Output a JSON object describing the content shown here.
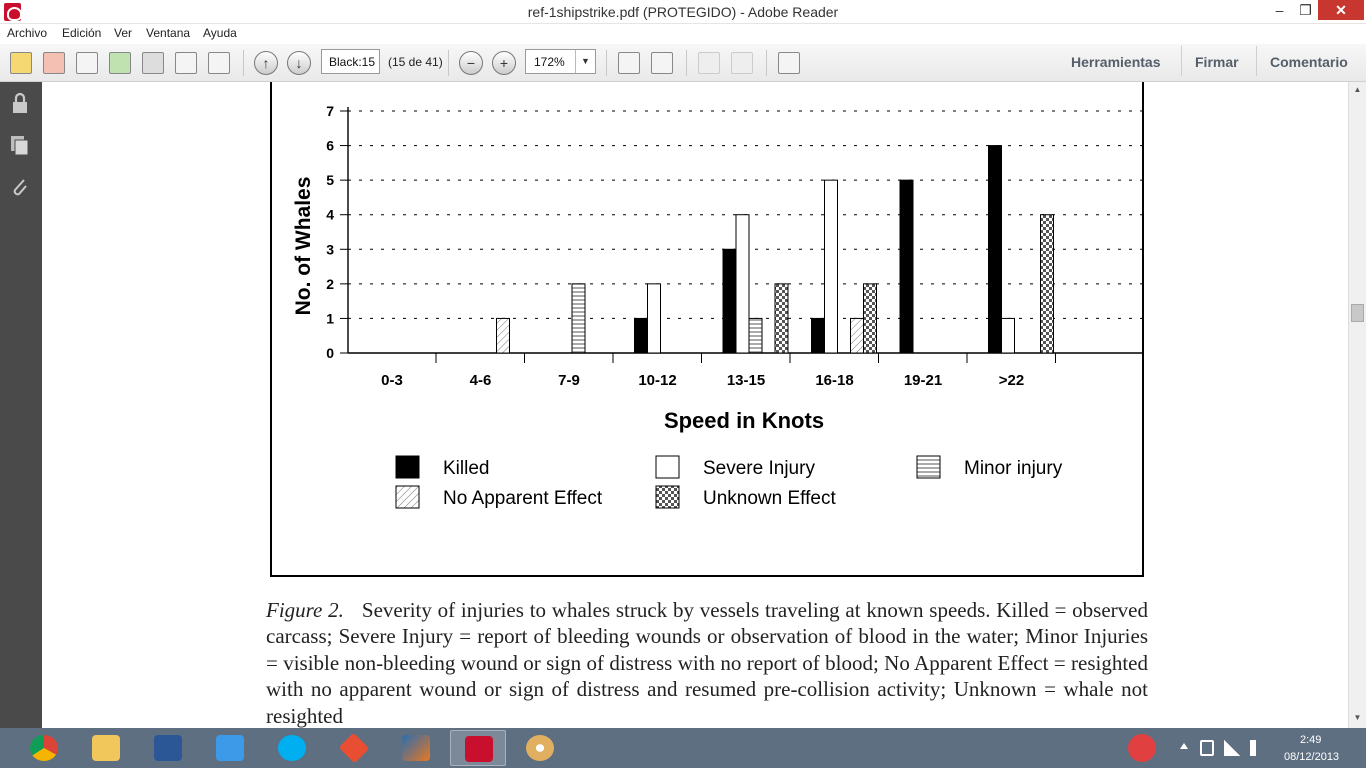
{
  "window": {
    "title": "ref-1shipstrike.pdf (PROTEGIDO) - Adobe Reader",
    "minimize_glyph": "–",
    "maximize_glyph": "❐",
    "close_glyph": "✕"
  },
  "menu": {
    "items": [
      "Archivo",
      "Edición",
      "Ver",
      "Ventana",
      "Ayuda"
    ]
  },
  "toolbar": {
    "page_value": "Black:15",
    "page_count": "(15 de 41)",
    "zoom_value": "172%",
    "zoom_dropdown_glyph": "▼",
    "zoom_out_glyph": "−",
    "zoom_in_glyph": "+",
    "prev_glyph": "↑",
    "next_glyph": "↓",
    "links": {
      "tools": "Herramientas",
      "sign": "Firmar",
      "comment": "Comentario"
    }
  },
  "scrollbar": {
    "up_glyph": "▲",
    "down_glyph": "▼"
  },
  "chart_data": {
    "type": "bar",
    "xlabel": "Speed in Knots",
    "ylabel": "No. of Whales",
    "ylim": [
      0,
      7
    ],
    "yticks": [
      "0",
      "1",
      "2",
      "3",
      "4",
      "5",
      "6",
      "7"
    ],
    "grid": true,
    "categories": [
      "0-3",
      "4-6",
      "7-9",
      "10-12",
      "13-15",
      "16-18",
      "19-21",
      ">22"
    ],
    "series": [
      {
        "name": "Killed",
        "pattern": "solid",
        "values": [
          0,
          0,
          0,
          1,
          3,
          1,
          5,
          6
        ]
      },
      {
        "name": "Severe Injury",
        "pattern": "white",
        "values": [
          0,
          0,
          0,
          2,
          4,
          5,
          0,
          1
        ]
      },
      {
        "name": "Minor injury",
        "pattern": "horizontal",
        "values": [
          0,
          0,
          2,
          0,
          1,
          0,
          0,
          0
        ]
      },
      {
        "name": "No Apparent Effect",
        "pattern": "diagonal",
        "values": [
          0,
          1,
          0,
          0,
          0,
          1,
          0,
          0
        ]
      },
      {
        "name": "Unknown Effect",
        "pattern": "checker",
        "values": [
          0,
          0,
          0,
          0,
          2,
          2,
          0,
          4
        ]
      }
    ]
  },
  "caption": {
    "label": "Figure 2.",
    "text": "Severity of injuries to whales struck by vessels traveling at known speeds. Killed = observed carcass; Severe Injury = report of bleeding wounds or observation of blood in the water; Minor Injuries = visible non-bleeding wound or sign of distress with no report of blood; No Apparent Effect = resighted with no apparent wound or sign of distress and resumed pre-collision activity; Unknown = whale not resighted"
  },
  "taskbar": {
    "apps": [
      "chrome-icon",
      "explorer-icon",
      "word-icon",
      "dropbox-icon",
      "skype-icon",
      "git-icon",
      "matlab-icon",
      "adobe-reader-icon",
      "paint-icon"
    ],
    "time": "2:49",
    "date": "08/12/2013"
  }
}
